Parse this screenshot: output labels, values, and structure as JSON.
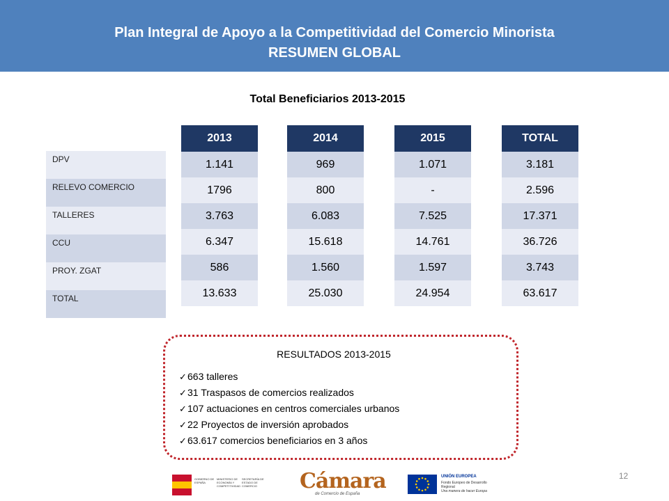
{
  "header": {
    "title_line1": "Plan Integral de Apoyo a la Competitividad del Comercio Minorista",
    "title_line2": "RESUMEN GLOBAL"
  },
  "subtitle": "Total Beneficiarios 2013-2015",
  "row_labels": [
    "DPV",
    "RELEVO COMERCIO",
    "TALLERES",
    "CCU",
    "PROY. ZGAT",
    "TOTAL"
  ],
  "columns": [
    {
      "header": "2013",
      "values": [
        "1.141",
        "1796",
        "3.763",
        "6.347",
        "586",
        "13.633"
      ]
    },
    {
      "header": "2014",
      "values": [
        "969",
        "800",
        "6.083",
        "15.618",
        "1.560",
        "25.030"
      ]
    },
    {
      "header": "2015",
      "values": [
        "1.071",
        "-",
        "7.525",
        "14.761",
        "1.597",
        "24.954"
      ]
    },
    {
      "header": "TOTAL",
      "values": [
        "3.181",
        "2.596",
        "17.371",
        "36.726",
        "3.743",
        "63.617"
      ]
    }
  ],
  "results": {
    "title": "RESULTADOS 2013-2015",
    "items": [
      "663 talleres",
      "31 Traspasos de comercios realizados",
      "107 actuaciones en centros comerciales urbanos",
      "22 Proyectos de inversión aprobados",
      "63.617 comercios beneficiarios en 3 años"
    ]
  },
  "logos": {
    "gobierno_text1": "GOBIERNO DE ESPAÑA",
    "gobierno_text2": "MINISTERIO DE ECONOMÍA Y COMPETITIVIDAD",
    "gobierno_text3": "SECRETARÍA DE ESTADO DE COMERCIO",
    "camara_name": "Cámara",
    "camara_sub": "de Comercio de España",
    "eu_title": "UNIÓN EUROPEA",
    "eu_line1": "Fondo Europeo de Desarrollo Regional",
    "eu_line2": "Una manera de hacer Europa"
  },
  "page_number": "12",
  "colors": {
    "header_bg": "#4f81bd",
    "column_header_bg": "#1f3864",
    "row_dark": "#cfd6e6",
    "row_light": "#e8ebf4",
    "results_border": "#c0262c"
  }
}
